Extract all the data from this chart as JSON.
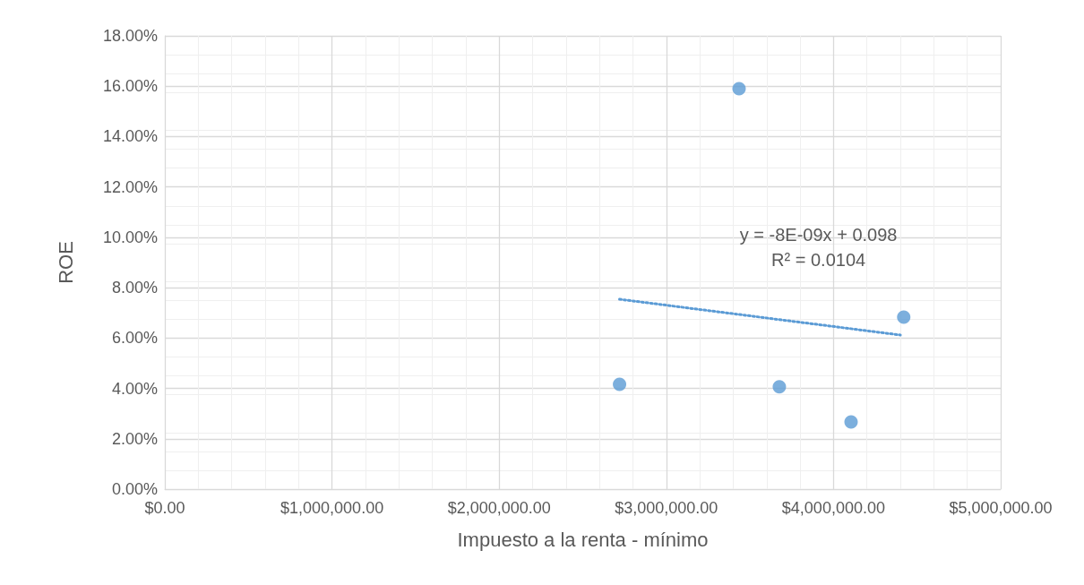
{
  "chart_data": {
    "type": "scatter",
    "xlabel": "Impuesto a la renta - mínimo",
    "ylabel": "ROE",
    "x": [
      2720000,
      3435000,
      3676000,
      4105000,
      4420000
    ],
    "series": [
      {
        "color": "#5b9bd5",
        "values": [
          4.16,
          15.9,
          4.06,
          2.67,
          6.83
        ],
        "marker": "circle"
      },
      {
        "type": "line",
        "color": "#5b9bd5",
        "x": [
          2720000,
          4400000
        ],
        "values": [
          7.54,
          6.12
        ],
        "line_style": "dotted",
        "marker": "none"
      }
    ],
    "xlim": [
      0,
      5000000
    ],
    "xticks": [
      {
        "value": 0,
        "label": "$0.00"
      },
      {
        "value": 1000000,
        "label": "$1,000,000.00"
      },
      {
        "value": 2000000,
        "label": "$2,000,000.00"
      },
      {
        "value": 3000000,
        "label": "$3,000,000.00"
      },
      {
        "value": 4000000,
        "label": "$4,000,000.00"
      },
      {
        "value": 5000000,
        "label": "$5,000,000.00"
      }
    ],
    "ylim": [
      0,
      18
    ],
    "yticks": [
      {
        "value": 0,
        "label": "0.00%"
      },
      {
        "value": 2,
        "label": "2.00%"
      },
      {
        "value": 4,
        "label": "4.00%"
      },
      {
        "value": 6,
        "label": "6.00%"
      },
      {
        "value": 8,
        "label": "8.00%"
      },
      {
        "value": 10,
        "label": "10.00%"
      },
      {
        "value": 12,
        "label": "12.00%"
      },
      {
        "value": 14,
        "label": "14.00%"
      },
      {
        "value": 16,
        "label": "16.00%"
      },
      {
        "value": 18,
        "label": "18.00%"
      }
    ],
    "annotations": [
      "y = -8E-09x + 0.098",
      "R² = 0.0104"
    ],
    "grid": true
  }
}
